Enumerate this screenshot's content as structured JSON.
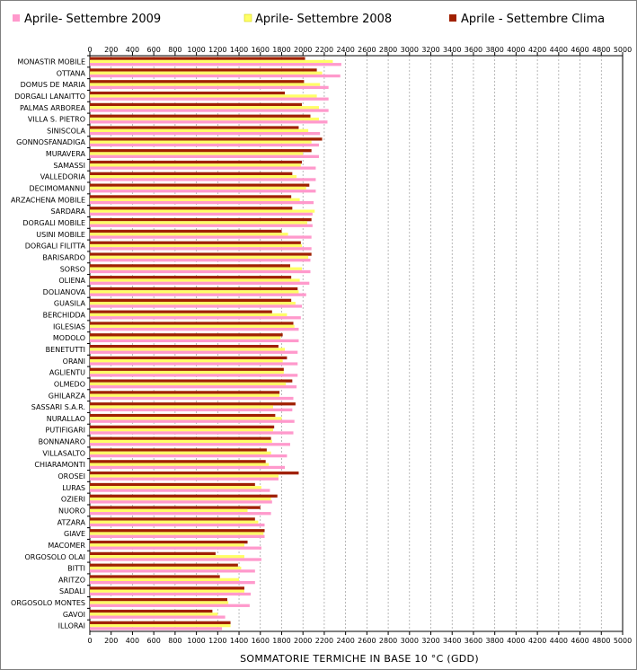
{
  "chart_data": {
    "type": "bar",
    "orientation": "horizontal",
    "xlabel": "SOMMATORIE TERMICHE IN BASE 10 °C (GDD)",
    "xlim": [
      0,
      5000
    ],
    "xticks": [
      0,
      200,
      400,
      600,
      800,
      1000,
      1200,
      1400,
      1600,
      1800,
      2000,
      2200,
      2400,
      2600,
      2800,
      3000,
      3200,
      3400,
      3600,
      3800,
      4000,
      4200,
      4400,
      4600,
      4800,
      5000
    ],
    "grid": "vertical dashed",
    "legend_position": "top",
    "categories": [
      "MONASTIR MOBILE",
      "OTTANA",
      "DOMUS DE MARIA",
      "DORGALI LANAITTO",
      "PALMAS ARBOREA",
      "VILLA S. PIETRO",
      "SINISCOLA",
      "GONNOSFANADIGA",
      "MURAVERA",
      "SAMASSI",
      "VALLEDORIA",
      "DECIMOMANNU",
      "ARZACHENA MOBILE",
      "SARDARA",
      "DORGALI MOBILE",
      "USINI MOBILE",
      "DORGALI FILITTA",
      "BARISARDO",
      "SORSO",
      "OLIENA",
      "DOLIANOVA",
      "GUASILA",
      "BERCHIDDA",
      "IGLESIAS",
      "MODOLO",
      "BENETUTTI",
      "ORANI",
      "AGLIENTU",
      "OLMEDO",
      "GHILARZA",
      "SASSARI S.A.R.",
      "NURALLAO",
      "PUTIFIGARI",
      "BONNANARO",
      "VILLASALTO",
      "CHIARAMONTI",
      "OROSEI",
      "LURAS",
      "OZIERI",
      "NUORO",
      "ATZARA",
      "GIAVE",
      "MACOMER",
      "ORGOSOLO OLAI",
      "BITTI",
      "ARITZO",
      "SADALI",
      "ORGOSOLO MONTES",
      "GAVOI",
      "ILLORAI"
    ],
    "series": [
      {
        "name": "Aprile- Settembre Clima",
        "color": "#a02000",
        "values": [
          2020,
          2130,
          2010,
          1830,
          1990,
          2070,
          1960,
          2180,
          2080,
          1990,
          1900,
          2060,
          1890,
          1900,
          2080,
          1800,
          1980,
          2080,
          1880,
          1890,
          1950,
          1890,
          1710,
          1910,
          1810,
          1770,
          1850,
          1820,
          1900,
          1780,
          1930,
          1740,
          1730,
          1700,
          1660,
          1650,
          1960,
          1550,
          1760,
          1600,
          1550,
          1640,
          1480,
          1180,
          1390,
          1220,
          1450,
          1290,
          1150,
          1320
        ]
      },
      {
        "name": "Aprile- Settembre 2008",
        "color": "#ffff66",
        "values": [
          2280,
          2180,
          2160,
          2130,
          2150,
          2150,
          2050,
          2080,
          2000,
          1980,
          1940,
          2030,
          1970,
          2110,
          2040,
          1860,
          1990,
          2050,
          1990,
          1970,
          1960,
          1930,
          1850,
          1920,
          1790,
          1830,
          1810,
          1820,
          1840,
          1780,
          1720,
          1800,
          1720,
          1710,
          1700,
          1680,
          1770,
          1610,
          1700,
          1480,
          1580,
          1630,
          1450,
          1450,
          1420,
          1400,
          1450,
          1300,
          1200,
          1320
        ]
      },
      {
        "name": "Aprile- Settembre 2009",
        "color": "#ff99cc",
        "values": [
          2360,
          2350,
          2240,
          2240,
          2240,
          2230,
          2160,
          2150,
          2150,
          2120,
          2120,
          2120,
          2100,
          2090,
          2090,
          2080,
          2080,
          2070,
          2070,
          2060,
          2030,
          1990,
          1980,
          1960,
          1960,
          1950,
          1950,
          1950,
          1940,
          1910,
          1900,
          1920,
          1910,
          1880,
          1850,
          1830,
          1770,
          1690,
          1710,
          1700,
          1640,
          1640,
          1610,
          1610,
          1550,
          1550,
          1510,
          1500,
          1270,
          1240
        ]
      }
    ]
  },
  "legend": {
    "items": [
      {
        "label": "Aprile- Settembre 2009",
        "color": "#ff99cc"
      },
      {
        "label": "Aprile- Settembre 2008",
        "color": "#ffff66"
      },
      {
        "label": "Aprile - Settembre Clima",
        "color": "#a02000"
      }
    ]
  }
}
